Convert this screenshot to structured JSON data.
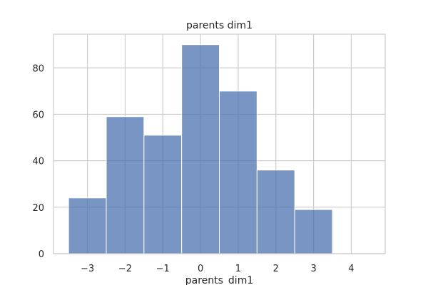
{
  "chart_data": {
    "type": "bar",
    "title": "parents dim1",
    "xlabel": "parents_dim1",
    "ylabel": "",
    "bins": [
      {
        "x0": -3.5,
        "x1": -2.5,
        "count": 24
      },
      {
        "x0": -2.5,
        "x1": -1.5,
        "count": 59
      },
      {
        "x0": -1.5,
        "x1": -0.5,
        "count": 51
      },
      {
        "x0": -0.5,
        "x1": 0.5,
        "count": 90
      },
      {
        "x0": 0.5,
        "x1": 1.5,
        "count": 70
      },
      {
        "x0": 1.5,
        "x1": 2.5,
        "count": 36
      },
      {
        "x0": 2.5,
        "x1": 3.5,
        "count": 19
      }
    ],
    "xticks": [
      -3,
      -2,
      -1,
      0,
      1,
      2,
      3,
      4
    ],
    "xtick_labels": [
      "−3",
      "−2",
      "−1",
      "0",
      "1",
      "2",
      "3",
      "4"
    ],
    "yticks": [
      0,
      20,
      40,
      60,
      80
    ],
    "ytick_labels": [
      "0",
      "20",
      "40",
      "60",
      "80"
    ],
    "xlim": [
      -3.9,
      4.9
    ],
    "ylim": [
      0,
      94.5
    ],
    "grid": true,
    "bar_color": "#4c72b0",
    "grid_color": "#cccccc"
  }
}
